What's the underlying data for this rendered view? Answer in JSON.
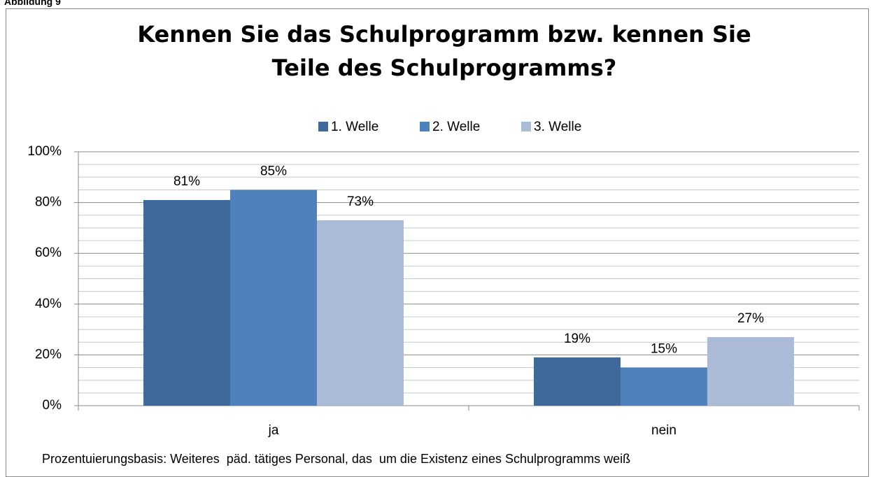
{
  "figure_label": "Abbildung 9",
  "chart_data": {
    "type": "bar",
    "title": "Kennen Sie das Schulprogramm bzw. kennen Sie Teile des Schulprogramms?",
    "categories": [
      "ja",
      "nein"
    ],
    "series": [
      {
        "name": "1. Welle",
        "color": "#40699b",
        "values": [
          81,
          19
        ],
        "value_labels": [
          "81%",
          "19%"
        ]
      },
      {
        "name": "2. Welle",
        "color": "#4f81bd",
        "values": [
          85,
          15
        ],
        "value_labels": [
          "85%",
          "15%"
        ]
      },
      {
        "name": "3. Welle",
        "color": "#aabad7",
        "values": [
          73,
          27
        ],
        "value_labels": [
          "73%",
          "27%"
        ]
      }
    ],
    "ylim": [
      0,
      100
    ],
    "yticks": [
      {
        "value": 0,
        "label": "0%"
      },
      {
        "value": 20,
        "label": "20%"
      },
      {
        "value": 40,
        "label": "40%"
      },
      {
        "value": 60,
        "label": "60%"
      },
      {
        "value": 80,
        "label": "80%"
      },
      {
        "value": 100,
        "label": "100%"
      }
    ],
    "minor_yticks": [
      5,
      10,
      15,
      25,
      30,
      35,
      45,
      50,
      55,
      65,
      70,
      75,
      85,
      90,
      95
    ],
    "grid": true,
    "legend": "top",
    "note": "Prozentuierungsbasis: Weiteres  päd. tätiges Personal, das  um die Existenz eines Schulprogramms weiß"
  }
}
